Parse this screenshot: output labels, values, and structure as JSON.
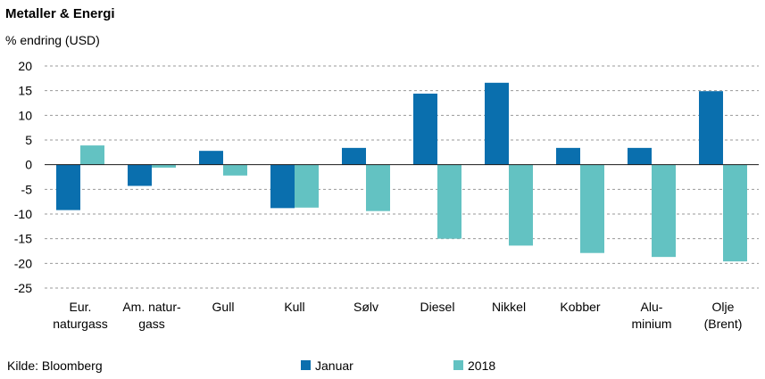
{
  "chart_data": {
    "type": "bar",
    "title": "Metaller & Energi",
    "subtitle": "% endring (USD)",
    "source": "Kilde: Bloomberg",
    "categories": [
      [
        "Eur.",
        "naturgass"
      ],
      [
        "Am. natur-",
        "gass"
      ],
      [
        "Gull"
      ],
      [
        "Kull"
      ],
      [
        "Sølv"
      ],
      [
        "Diesel"
      ],
      [
        "Nikkel"
      ],
      [
        "Kobber"
      ],
      [
        "Alu-",
        "minium"
      ],
      [
        "Olje",
        "(Brent)"
      ]
    ],
    "series": [
      {
        "name": "Januar",
        "color": "#0a6fae",
        "values": [
          -9.2,
          -4.3,
          2.8,
          -8.8,
          3.4,
          14.4,
          16.6,
          3.4,
          3.4,
          14.9
        ]
      },
      {
        "name": "2018",
        "color": "#63c2c2",
        "values": [
          3.9,
          -0.6,
          -2.2,
          -8.7,
          -9.4,
          -15.0,
          -16.4,
          -17.9,
          -18.7,
          -19.6
        ]
      }
    ],
    "ylim": [
      -25,
      20
    ],
    "yticks": [
      20,
      15,
      10,
      5,
      0,
      -5,
      -10,
      -15,
      -20,
      -25
    ],
    "grid": true,
    "legend_position": "bottom"
  }
}
